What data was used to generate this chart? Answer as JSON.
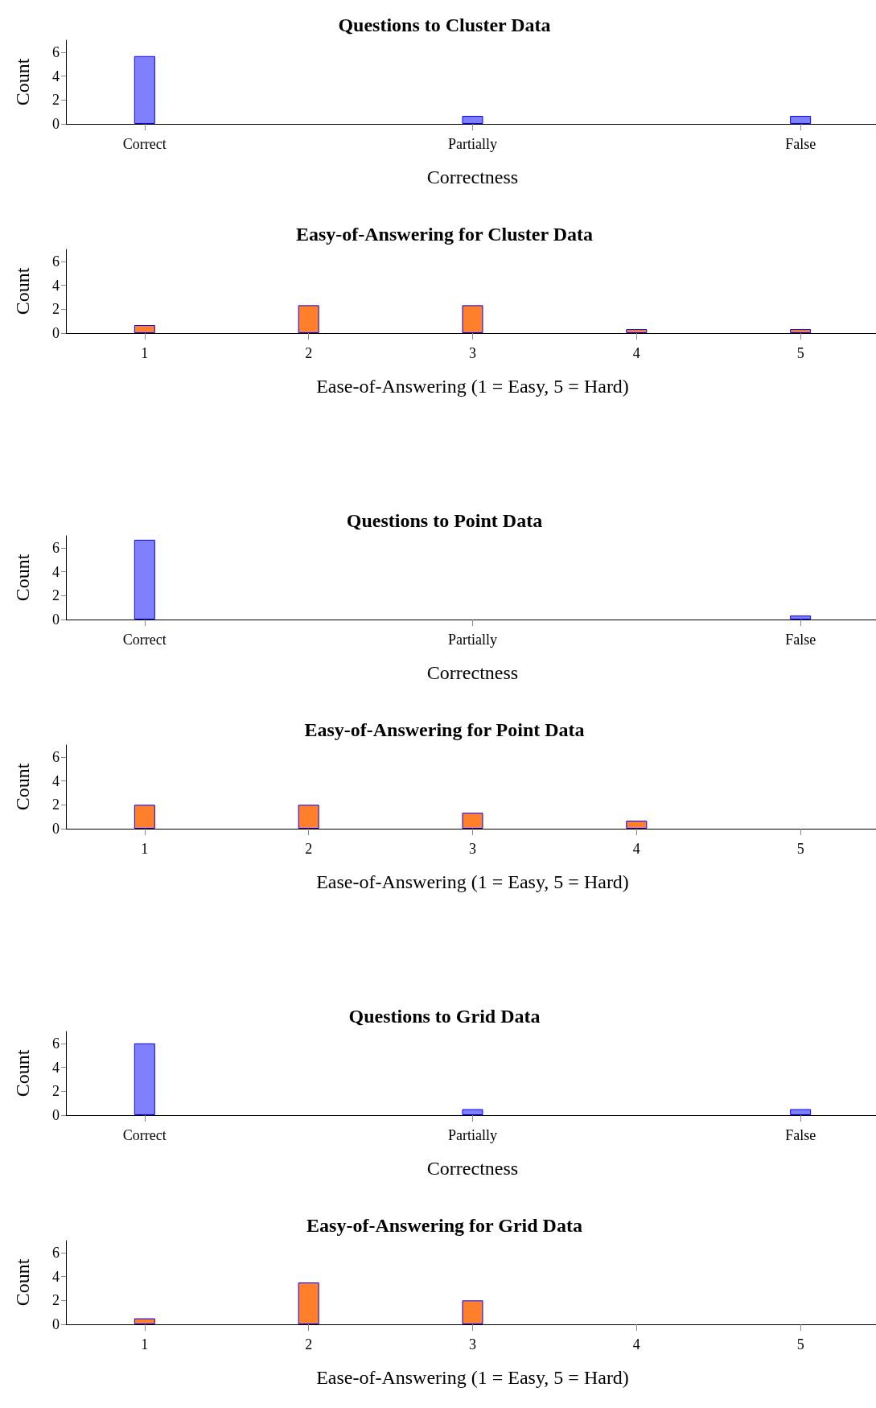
{
  "chart_data": [
    {
      "type": "bar",
      "title": "Questions to Cluster Data",
      "xlabel": "Correctness",
      "ylabel": "Count",
      "categories": [
        "Correct",
        "Partially",
        "False"
      ],
      "values": [
        5.67,
        0.67,
        0.67
      ],
      "color": "#8080ff",
      "ylim": [
        0,
        7
      ],
      "yticks": [
        0,
        2,
        4,
        6
      ]
    },
    {
      "type": "bar",
      "title": "Easy-of-Answering for Cluster Data",
      "xlabel": "Ease-of-Answering (1 = Easy, 5 = Hard)",
      "ylabel": "Count",
      "categories": [
        "1",
        "2",
        "3",
        "4",
        "5"
      ],
      "values": [
        0.67,
        2.33,
        2.33,
        0.33,
        0.33
      ],
      "color": "#ff7f2a",
      "ylim": [
        0,
        7
      ],
      "yticks": [
        0,
        2,
        4,
        6
      ]
    },
    {
      "type": "bar",
      "title": "Questions to Point Data",
      "xlabel": "Correctness",
      "ylabel": "Count",
      "categories": [
        "Correct",
        "Partially",
        "False"
      ],
      "values": [
        6.67,
        0,
        0.33
      ],
      "color": "#8080ff",
      "ylim": [
        0,
        7
      ],
      "yticks": [
        0,
        2,
        4,
        6
      ]
    },
    {
      "type": "bar",
      "title": "Easy-of-Answering for Point Data",
      "xlabel": "Ease-of-Answering (1 = Easy, 5 = Hard)",
      "ylabel": "Count",
      "categories": [
        "1",
        "2",
        "3",
        "4",
        "5"
      ],
      "values": [
        2,
        2,
        1.33,
        0.67,
        0
      ],
      "color": "#ff7f2a",
      "ylim": [
        0,
        7
      ],
      "yticks": [
        0,
        2,
        4,
        6
      ]
    },
    {
      "type": "bar",
      "title": "Questions to Grid Data",
      "xlabel": "Correctness",
      "ylabel": "Count",
      "categories": [
        "Correct",
        "Partially",
        "False"
      ],
      "values": [
        6,
        0.5,
        0.5
      ],
      "color": "#8080ff",
      "ylim": [
        0,
        7
      ],
      "yticks": [
        0,
        2,
        4,
        6
      ]
    },
    {
      "type": "bar",
      "title": "Easy-of-Answering for Grid Data",
      "xlabel": "Ease-of-Answering (1 = Easy, 5 = Hard)",
      "ylabel": "Count",
      "categories": [
        "1",
        "2",
        "3",
        "4",
        "5"
      ],
      "values": [
        0.5,
        3.5,
        2,
        0,
        0
      ],
      "color": "#ff7f2a",
      "ylim": [
        0,
        7
      ],
      "yticks": [
        0,
        2,
        4,
        6
      ]
    }
  ]
}
